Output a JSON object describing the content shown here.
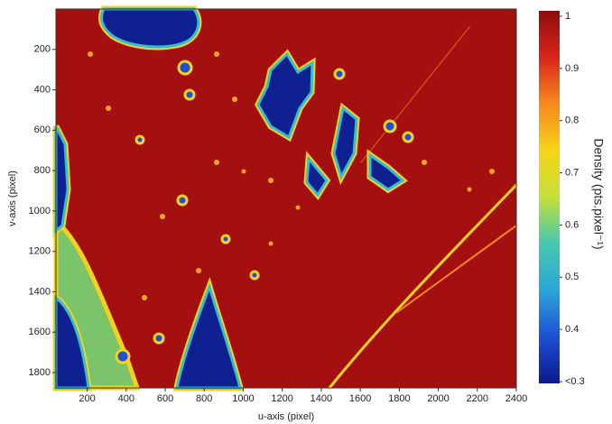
{
  "chart_data": {
    "type": "heatmap",
    "xlabel": "u-axis (pixel)",
    "ylabel": "v-axis (pixel)",
    "xlim": [
      40,
      2400
    ],
    "xticks": [
      200,
      400,
      600,
      800,
      1000,
      1200,
      1400,
      1600,
      1800,
      2000,
      2200,
      2400
    ],
    "ylim": [
      0,
      1876
    ],
    "y_inverted": true,
    "yticks": [
      200,
      400,
      600,
      800,
      1000,
      1200,
      1400,
      1600,
      1800
    ],
    "colorbar": {
      "label": "Density (pts.pixel⁻¹)",
      "lim": [
        0.3,
        1
      ],
      "ticks": [
        {
          "value": 0.3,
          "label": "<0.3"
        },
        0.4,
        0.5,
        0.6,
        0.7,
        0.8,
        0.9,
        1
      ],
      "colors": [
        "#0b1a8c",
        "#1f4fd6",
        "#2aa6d8",
        "#45c8b0",
        "#c4e03a",
        "#f7d417",
        "#f58a1c",
        "#d8251c",
        "#8e0c0c"
      ]
    }
  }
}
